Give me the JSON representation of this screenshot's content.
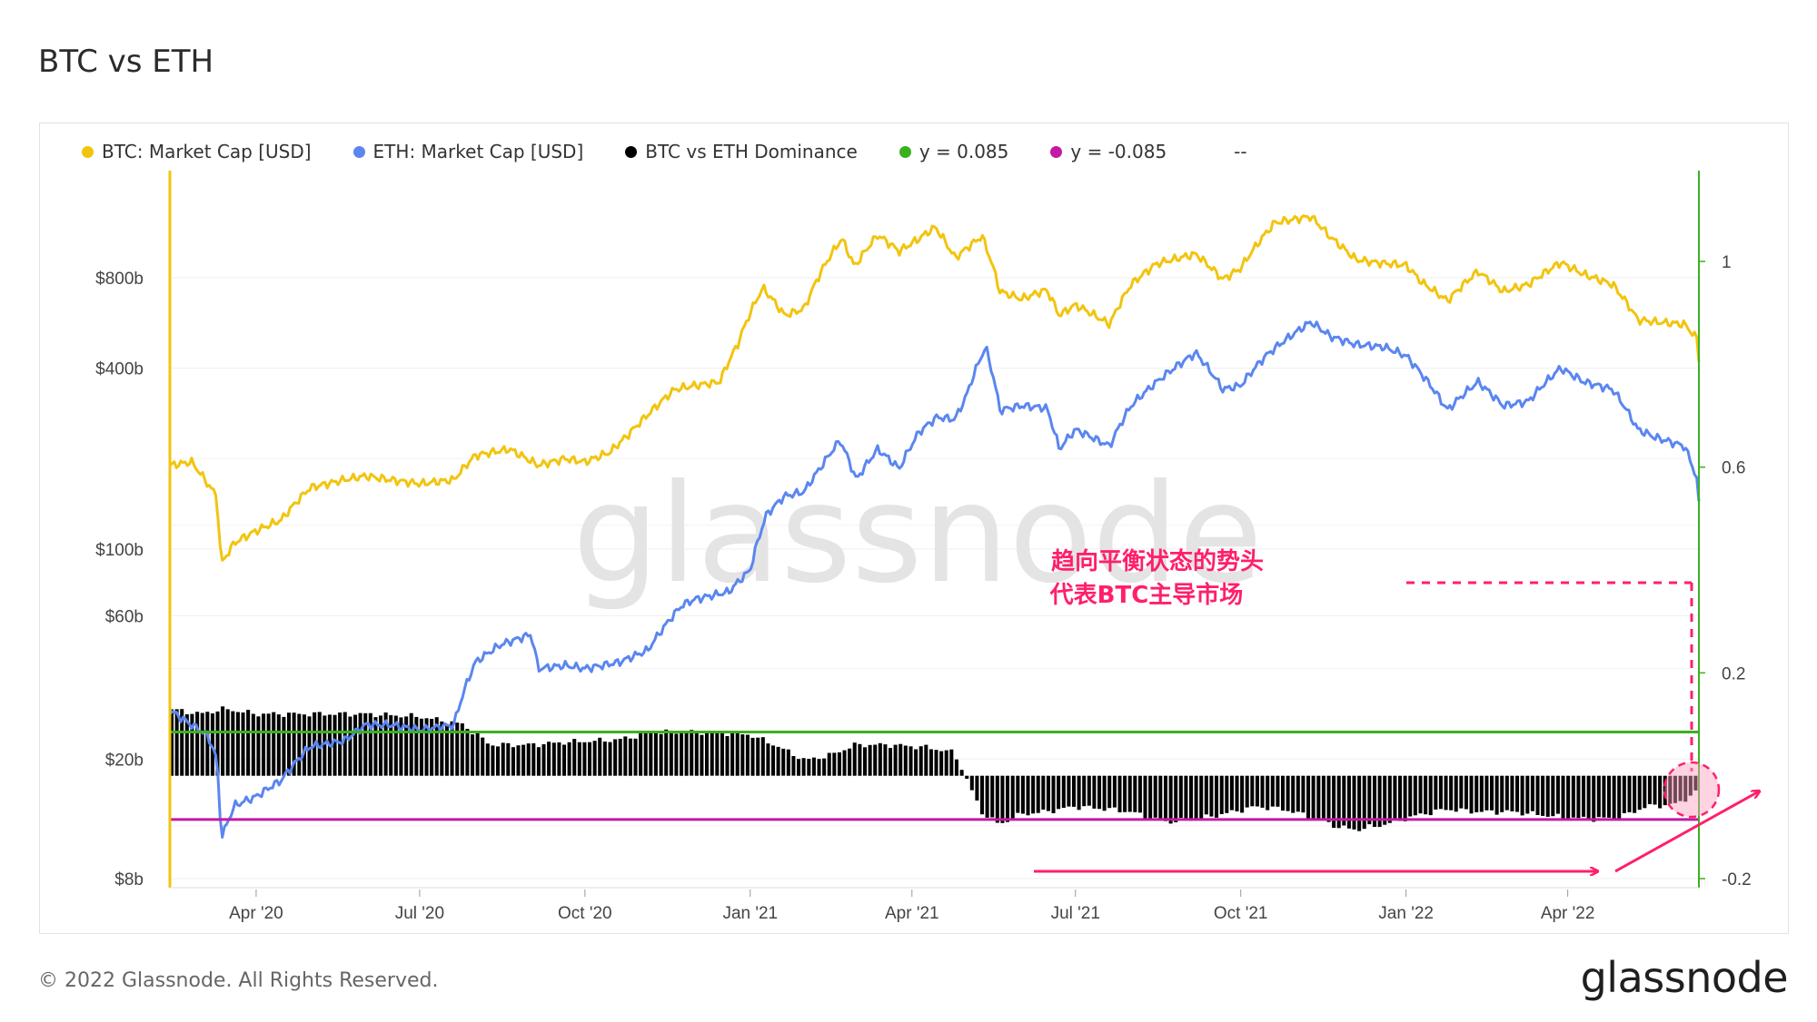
{
  "page": {
    "title": "BTC vs ETH"
  },
  "legend": [
    {
      "label": "BTC: Market Cap [USD]",
      "color": "#f2c40f"
    },
    {
      "label": "ETH: Market Cap [USD]",
      "color": "#5b86f0"
    },
    {
      "label": "BTC vs ETH Dominance",
      "color": "#000000"
    },
    {
      "label": "y = 0.085",
      "color": "#39b11f"
    },
    {
      "label": "y = -0.085",
      "color": "#c21aa3"
    }
  ],
  "legend_extra": "--",
  "watermark": "glassnode",
  "annotation": {
    "line1": "趋向平衡状态的势头",
    "line2": "代表BTC主导市场"
  },
  "footer": {
    "copyright": "© 2022 Glassnode. All Rights Reserved.",
    "brand": "glassnode"
  },
  "chart_data": {
    "type": "line",
    "title": "BTC vs ETH",
    "x_ticks": [
      "Apr '20",
      "Jul '20",
      "Oct '20",
      "Jan '21",
      "Apr '21",
      "Jul '21",
      "Oct '21",
      "Jan '22",
      "Apr '22"
    ],
    "x_tick_dates": [
      "2020-04-01",
      "2020-07-01",
      "2020-10-01",
      "2021-01-01",
      "2021-04-01",
      "2021-07-01",
      "2021-10-01",
      "2022-01-01",
      "2022-04-01"
    ],
    "x_range": [
      "2020-02-13",
      "2022-06-13"
    ],
    "y_left": {
      "scale": "log",
      "ticks": [
        "$800b",
        "$400b",
        "$100b",
        "$60b",
        "$20b",
        "$8b"
      ],
      "tick_values": [
        800,
        400,
        100,
        60,
        20,
        8
      ],
      "unit": "billion USD"
    },
    "y_right": {
      "scale": "linear",
      "ticks": [
        "1",
        "0.6",
        "0.2",
        "-0.2"
      ],
      "tick_values": [
        1,
        0.6,
        0.2,
        -0.2
      ],
      "range": [
        -0.2,
        1.2
      ]
    },
    "series": [
      {
        "name": "BTC: Market Cap [USD]",
        "axis": "left",
        "color": "#f2c40f",
        "points": [
          [
            "2020-02-13",
            190
          ],
          [
            "2020-02-25",
            195
          ],
          [
            "2020-03-05",
            165
          ],
          [
            "2020-03-10",
            150
          ],
          [
            "2020-03-12",
            100
          ],
          [
            "2020-03-13",
            90
          ],
          [
            "2020-03-20",
            105
          ],
          [
            "2020-04-01",
            115
          ],
          [
            "2020-04-15",
            125
          ],
          [
            "2020-05-01",
            160
          ],
          [
            "2020-05-20",
            170
          ],
          [
            "2020-06-01",
            175
          ],
          [
            "2020-06-15",
            170
          ],
          [
            "2020-07-01",
            165
          ],
          [
            "2020-07-20",
            170
          ],
          [
            "2020-08-01",
            205
          ],
          [
            "2020-08-20",
            215
          ],
          [
            "2020-09-05",
            190
          ],
          [
            "2020-09-20",
            200
          ],
          [
            "2020-10-01",
            195
          ],
          [
            "2020-10-15",
            210
          ],
          [
            "2020-10-25",
            240
          ],
          [
            "2020-11-05",
            280
          ],
          [
            "2020-11-20",
            340
          ],
          [
            "2020-12-01",
            350
          ],
          [
            "2020-12-15",
            360
          ],
          [
            "2020-12-25",
            480
          ],
          [
            "2021-01-08",
            740
          ],
          [
            "2021-01-20",
            600
          ],
          [
            "2021-01-31",
            630
          ],
          [
            "2021-02-10",
            850
          ],
          [
            "2021-02-21",
            1080
          ],
          [
            "2021-02-28",
            870
          ],
          [
            "2021-03-13",
            1110
          ],
          [
            "2021-03-25",
            980
          ],
          [
            "2021-04-05",
            1080
          ],
          [
            "2021-04-14",
            1180
          ],
          [
            "2021-04-25",
            930
          ],
          [
            "2021-05-10",
            1100
          ],
          [
            "2021-05-20",
            720
          ],
          [
            "2021-06-01",
            680
          ],
          [
            "2021-06-15",
            730
          ],
          [
            "2021-06-22",
            600
          ],
          [
            "2021-07-01",
            650
          ],
          [
            "2021-07-20",
            560
          ],
          [
            "2021-08-01",
            760
          ],
          [
            "2021-08-15",
            890
          ],
          [
            "2021-09-06",
            960
          ],
          [
            "2021-09-21",
            790
          ],
          [
            "2021-10-01",
            860
          ],
          [
            "2021-10-20",
            1220
          ],
          [
            "2021-11-09",
            1280
          ],
          [
            "2021-11-20",
            1090
          ],
          [
            "2021-12-04",
            920
          ],
          [
            "2021-12-15",
            900
          ],
          [
            "2022-01-01",
            880
          ],
          [
            "2022-01-10",
            770
          ],
          [
            "2022-01-24",
            670
          ],
          [
            "2022-02-10",
            840
          ],
          [
            "2022-02-24",
            720
          ],
          [
            "2022-03-10",
            760
          ],
          [
            "2022-03-28",
            900
          ],
          [
            "2022-04-10",
            820
          ],
          [
            "2022-04-26",
            760
          ],
          [
            "2022-05-10",
            580
          ],
          [
            "2022-05-20",
            570
          ],
          [
            "2022-06-05",
            560
          ],
          [
            "2022-06-12",
            500
          ],
          [
            "2022-06-13",
            430
          ]
        ]
      },
      {
        "name": "ETH: Market Cap [USD]",
        "axis": "left",
        "color": "#5b86f0",
        "points": [
          [
            "2020-02-13",
            29
          ],
          [
            "2020-02-25",
            26
          ],
          [
            "2020-03-05",
            24
          ],
          [
            "2020-03-10",
            20
          ],
          [
            "2020-03-12",
            13
          ],
          [
            "2020-03-13",
            11
          ],
          [
            "2020-03-20",
            14
          ],
          [
            "2020-04-01",
            15
          ],
          [
            "2020-04-15",
            17
          ],
          [
            "2020-05-01",
            22
          ],
          [
            "2020-05-20",
            23
          ],
          [
            "2020-06-01",
            26
          ],
          [
            "2020-06-15",
            26
          ],
          [
            "2020-07-01",
            25
          ],
          [
            "2020-07-20",
            26
          ],
          [
            "2020-08-01",
            42
          ],
          [
            "2020-08-15",
            48
          ],
          [
            "2020-09-01",
            52
          ],
          [
            "2020-09-05",
            40
          ],
          [
            "2020-09-20",
            41
          ],
          [
            "2020-10-01",
            40
          ],
          [
            "2020-10-20",
            42
          ],
          [
            "2020-11-05",
            46
          ],
          [
            "2020-11-24",
            65
          ],
          [
            "2020-12-01",
            68
          ],
          [
            "2020-12-20",
            72
          ],
          [
            "2021-01-01",
            85
          ],
          [
            "2021-01-10",
            130
          ],
          [
            "2021-01-20",
            150
          ],
          [
            "2021-01-31",
            155
          ],
          [
            "2021-02-10",
            190
          ],
          [
            "2021-02-20",
            230
          ],
          [
            "2021-03-01",
            170
          ],
          [
            "2021-03-13",
            215
          ],
          [
            "2021-03-25",
            185
          ],
          [
            "2021-04-05",
            245
          ],
          [
            "2021-04-15",
            275
          ],
          [
            "2021-04-25",
            270
          ],
          [
            "2021-05-01",
            320
          ],
          [
            "2021-05-12",
            470
          ],
          [
            "2021-05-20",
            290
          ],
          [
            "2021-06-01",
            300
          ],
          [
            "2021-06-15",
            295
          ],
          [
            "2021-06-22",
            215
          ],
          [
            "2021-07-01",
            250
          ],
          [
            "2021-07-20",
            220
          ],
          [
            "2021-08-01",
            300
          ],
          [
            "2021-08-20",
            380
          ],
          [
            "2021-09-06",
            450
          ],
          [
            "2021-09-21",
            340
          ],
          [
            "2021-10-01",
            350
          ],
          [
            "2021-10-15",
            440
          ],
          [
            "2021-11-09",
            570
          ],
          [
            "2021-11-20",
            510
          ],
          [
            "2021-12-04",
            480
          ],
          [
            "2021-12-20",
            470
          ],
          [
            "2022-01-01",
            440
          ],
          [
            "2022-01-10",
            380
          ],
          [
            "2022-01-24",
            290
          ],
          [
            "2022-02-10",
            360
          ],
          [
            "2022-02-24",
            300
          ],
          [
            "2022-03-10",
            310
          ],
          [
            "2022-03-28",
            400
          ],
          [
            "2022-04-10",
            360
          ],
          [
            "2022-04-26",
            340
          ],
          [
            "2022-05-10",
            250
          ],
          [
            "2022-05-20",
            235
          ],
          [
            "2022-06-05",
            220
          ],
          [
            "2022-06-12",
            170
          ],
          [
            "2022-06-13",
            140
          ]
        ]
      },
      {
        "name": "BTC vs ETH Dominance",
        "axis": "right",
        "color": "#000000",
        "style": "columns",
        "points": [
          [
            "2020-02-13",
            0.13
          ],
          [
            "2020-03-01",
            0.12
          ],
          [
            "2020-03-15",
            0.13
          ],
          [
            "2020-04-01",
            0.12
          ],
          [
            "2020-05-01",
            0.12
          ],
          [
            "2020-06-01",
            0.12
          ],
          [
            "2020-07-01",
            0.115
          ],
          [
            "2020-07-25",
            0.1
          ],
          [
            "2020-08-10",
            0.06
          ],
          [
            "2020-09-01",
            0.06
          ],
          [
            "2020-09-20",
            0.065
          ],
          [
            "2020-10-20",
            0.07
          ],
          [
            "2020-11-10",
            0.085
          ],
          [
            "2020-12-10",
            0.085
          ],
          [
            "2021-01-01",
            0.08
          ],
          [
            "2021-01-15",
            0.06
          ],
          [
            "2021-02-01",
            0.03
          ],
          [
            "2021-02-15",
            0.04
          ],
          [
            "2021-03-01",
            0.06
          ],
          [
            "2021-03-20",
            0.06
          ],
          [
            "2021-04-10",
            0.055
          ],
          [
            "2021-04-25",
            0.045
          ],
          [
            "2021-05-01",
            0.0
          ],
          [
            "2021-05-10",
            -0.07
          ],
          [
            "2021-05-20",
            -0.095
          ],
          [
            "2021-06-01",
            -0.075
          ],
          [
            "2021-06-15",
            -0.07
          ],
          [
            "2021-07-01",
            -0.06
          ],
          [
            "2021-07-20",
            -0.065
          ],
          [
            "2021-08-01",
            -0.07
          ],
          [
            "2021-08-20",
            -0.09
          ],
          [
            "2021-09-06",
            -0.085
          ],
          [
            "2021-09-21",
            -0.075
          ],
          [
            "2021-10-10",
            -0.06
          ],
          [
            "2021-10-25",
            -0.065
          ],
          [
            "2021-11-10",
            -0.08
          ],
          [
            "2021-11-25",
            -0.1
          ],
          [
            "2021-12-05",
            -0.105
          ],
          [
            "2021-12-20",
            -0.095
          ],
          [
            "2022-01-10",
            -0.075
          ],
          [
            "2022-01-24",
            -0.065
          ],
          [
            "2022-02-10",
            -0.07
          ],
          [
            "2022-03-01",
            -0.07
          ],
          [
            "2022-03-28",
            -0.08
          ],
          [
            "2022-04-15",
            -0.085
          ],
          [
            "2022-05-01",
            -0.08
          ],
          [
            "2022-05-15",
            -0.06
          ],
          [
            "2022-06-01",
            -0.055
          ],
          [
            "2022-06-13",
            -0.03
          ]
        ]
      },
      {
        "name": "y = 0.085",
        "axis": "right",
        "color": "#39b11f",
        "constant": 0.085
      },
      {
        "name": "y = -0.085",
        "axis": "right",
        "color": "#c21aa3",
        "constant": -0.085
      }
    ],
    "grid": true,
    "legend_position": "top-left"
  }
}
